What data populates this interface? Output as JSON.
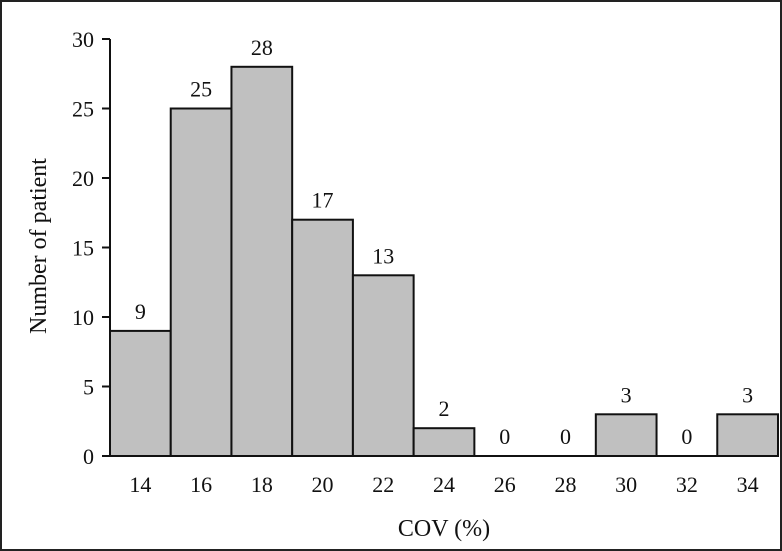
{
  "chart_data": {
    "type": "bar",
    "categories": [
      "14",
      "16",
      "18",
      "20",
      "22",
      "24",
      "26",
      "28",
      "30",
      "32",
      "34"
    ],
    "values": [
      9,
      25,
      28,
      17,
      13,
      2,
      0,
      0,
      3,
      0,
      3
    ],
    "xlabel": "COV (%)",
    "ylabel": "Number of patient",
    "ylim": [
      0,
      30
    ],
    "yticks": [
      0,
      5,
      10,
      15,
      20,
      25,
      30
    ],
    "grid": false,
    "legend": "none",
    "bar_color": "#c0c0c0",
    "bar_edge_color": "#111111",
    "data_labels": true
  }
}
